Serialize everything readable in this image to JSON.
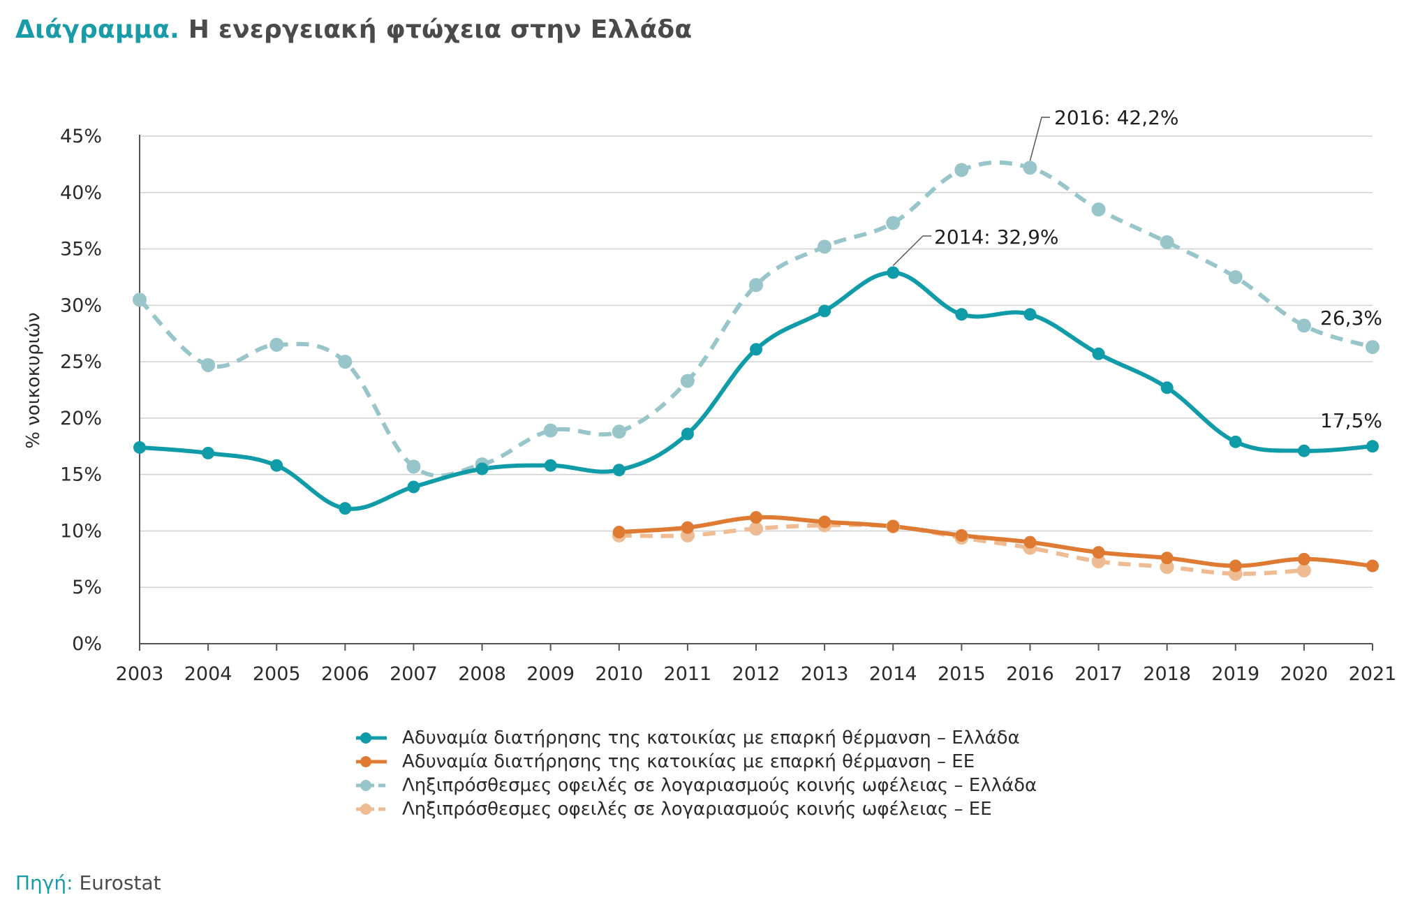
{
  "title": {
    "lead": "Διάγραμμα.",
    "rest": " Η ενεργειακή φτώχεια στην Ελλάδα"
  },
  "source": {
    "label": "Πηγή:",
    "value": " Eurostat"
  },
  "colors": {
    "teal": "#109ba8",
    "orange": "#de7a32",
    "light_teal": "#97c5ca",
    "light_orange": "#eebb92",
    "grid": "#d0d0d0",
    "axis": "#555555"
  },
  "chart_data": {
    "type": "line",
    "ylabel": "% νοικοκυριών",
    "xlabel": "",
    "ylim": [
      0,
      45
    ],
    "yticks": [
      0,
      5,
      10,
      15,
      20,
      25,
      30,
      35,
      40,
      45
    ],
    "ytick_labels": [
      "0%",
      "5%",
      "10%",
      "15%",
      "20%",
      "25%",
      "30%",
      "35%",
      "40%",
      "45%"
    ],
    "x": [
      2003,
      2004,
      2005,
      2006,
      2007,
      2008,
      2009,
      2010,
      2011,
      2012,
      2013,
      2014,
      2015,
      2016,
      2017,
      2018,
      2019,
      2020,
      2021
    ],
    "x_labels": [
      "2003",
      "2004",
      "2005",
      "2006",
      "2007",
      "2008",
      "2009",
      "2010",
      "2011",
      "2012",
      "2013",
      "2014",
      "2015",
      "2016",
      "2017",
      "2018",
      "2019",
      "2020",
      "2021"
    ],
    "grid": "horizontal",
    "legend_position": "bottom",
    "series": [
      {
        "name": "Αδυναμία διατήρησης της κατοικίας με επαρκή θέρμανση – Ελλάδα",
        "color": "#109ba8",
        "style": "solid",
        "values": [
          17.4,
          16.9,
          15.8,
          12.0,
          13.9,
          15.5,
          15.8,
          15.4,
          18.6,
          26.1,
          29.5,
          32.9,
          29.2,
          29.2,
          25.7,
          22.7,
          17.9,
          17.1,
          17.5
        ]
      },
      {
        "name": "Αδυναμία διατήρησης της κατοικίας με επαρκή θέρμανση – ΕΕ",
        "color": "#de7a32",
        "style": "solid",
        "values": [
          null,
          null,
          null,
          null,
          null,
          null,
          null,
          9.9,
          10.3,
          11.2,
          10.8,
          10.4,
          9.6,
          9.0,
          8.1,
          7.6,
          6.9,
          7.5,
          6.9
        ]
      },
      {
        "name": "Ληξιπρόσθεσμες οφειλές σε λογαριασμούς κοινής ωφέλειας – Ελλάδα",
        "color": "#97c5ca",
        "style": "dashed",
        "values": [
          30.5,
          24.7,
          26.5,
          25.0,
          15.7,
          15.9,
          18.9,
          18.8,
          23.3,
          31.8,
          35.2,
          37.3,
          42.0,
          42.2,
          38.5,
          35.6,
          32.5,
          28.2,
          26.3
        ]
      },
      {
        "name": "Ληξιπρόσθεσμες οφειλές σε λογαριασμούς κοινής ωφέλειας – ΕΕ",
        "color": "#eebb92",
        "style": "dashed",
        "values": [
          null,
          null,
          null,
          null,
          null,
          null,
          null,
          9.6,
          9.6,
          10.2,
          10.5,
          10.4,
          9.4,
          8.5,
          7.3,
          6.8,
          6.2,
          6.5,
          null
        ]
      }
    ],
    "annotations": [
      {
        "text": "2016: 42,2%",
        "year": 2016,
        "value": 42.2,
        "series": 2,
        "leader": true
      },
      {
        "text": "2014: 32,9%",
        "year": 2014,
        "value": 32.9,
        "series": 0,
        "leader": true
      },
      {
        "text": "26,3%",
        "year": 2021,
        "value": 26.3,
        "series": 2,
        "leader": false
      },
      {
        "text": "17,5%",
        "year": 2021,
        "value": 17.5,
        "series": 0,
        "leader": false
      }
    ]
  }
}
